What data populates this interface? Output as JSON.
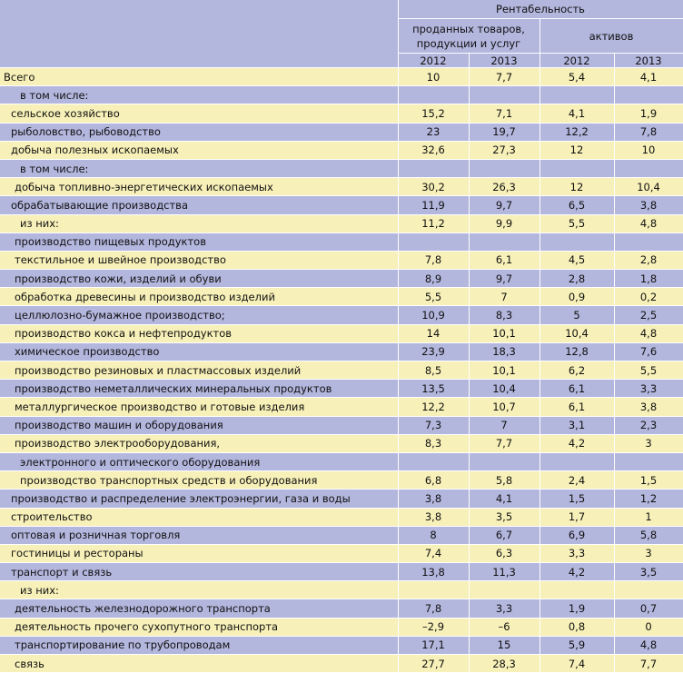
{
  "header": {
    "group": "Рентабельность",
    "sub1": "проданных товаров, продукции и услуг",
    "sub2": "активов",
    "years": [
      "2012",
      "2013",
      "2012",
      "2013"
    ]
  },
  "rows": [
    {
      "label": "Всего",
      "indent": 0,
      "values": [
        "10",
        "7,7",
        "5,4",
        "4,1"
      ]
    },
    {
      "label": "в том числе:",
      "indent": 3,
      "values": [
        "",
        "",
        "",
        ""
      ]
    },
    {
      "label": "сельское хозяйство",
      "indent": 1,
      "values": [
        "15,2",
        "7,1",
        "4,1",
        "1,9"
      ]
    },
    {
      "label": "рыболовство, рыбоводство",
      "indent": 1,
      "values": [
        "23",
        "19,7",
        "12,2",
        "7,8"
      ]
    },
    {
      "label": "добыча полезных ископаемых",
      "indent": 1,
      "values": [
        "32,6",
        "27,3",
        "12",
        "10"
      ]
    },
    {
      "label": "в том числе:",
      "indent": 3,
      "values": [
        "",
        "",
        "",
        ""
      ]
    },
    {
      "label": "добыча топливно-энергетических ископаемых",
      "indent": 2,
      "values": [
        "30,2",
        "26,3",
        "12",
        "10,4"
      ]
    },
    {
      "label": "обрабатывающие производства",
      "indent": 1,
      "values": [
        "11,9",
        "9,7",
        "6,5",
        "3,8"
      ]
    },
    {
      "label": "из них:",
      "indent": 3,
      "values": [
        "11,2",
        "9,9",
        "5,5",
        "4,8"
      ]
    },
    {
      "label": "производство пищевых продуктов",
      "indent": 2,
      "values": [
        "",
        "",
        "",
        ""
      ]
    },
    {
      "label": "текстильное и швейное производство",
      "indent": 2,
      "values": [
        "7,8",
        "6,1",
        "4,5",
        "2,8"
      ]
    },
    {
      "label": "производство кожи, изделий и обуви",
      "indent": 2,
      "values": [
        "8,9",
        "9,7",
        "2,8",
        "1,8"
      ]
    },
    {
      "label": "обработка древесины и производство изделий",
      "indent": 2,
      "values": [
        "5,5",
        "7",
        "0,9",
        "0,2"
      ]
    },
    {
      "label": "целлюлозно-бумажное производство;",
      "indent": 2,
      "values": [
        "10,9",
        "8,3",
        "5",
        "2,5"
      ]
    },
    {
      "label": "производство кокса и нефтепродуктов",
      "indent": 2,
      "values": [
        "14",
        "10,1",
        "10,4",
        "4,8"
      ]
    },
    {
      "label": "химическое производство",
      "indent": 2,
      "values": [
        "23,9",
        "18,3",
        "12,8",
        "7,6"
      ]
    },
    {
      "label": "производство резиновых и пластмассовых изделий",
      "indent": 2,
      "values": [
        "8,5",
        "10,1",
        "6,2",
        "5,5"
      ]
    },
    {
      "label": "производство неметаллических минеральных продуктов",
      "indent": 2,
      "values": [
        "13,5",
        "10,4",
        "6,1",
        "3,3"
      ]
    },
    {
      "label": "металлургическое производство и готовые изделия",
      "indent": 2,
      "values": [
        "12,2",
        "10,7",
        "6,1",
        "3,8"
      ]
    },
    {
      "label": "производство машин и оборудования",
      "indent": 2,
      "values": [
        "7,3",
        "7",
        "3,1",
        "2,3"
      ]
    },
    {
      "label": "производство электрооборудования,",
      "indent": 2,
      "values": [
        "8,3",
        "7,7",
        "4,2",
        "3"
      ]
    },
    {
      "label": "электронного и оптического оборудования",
      "indent": 3,
      "values": [
        "",
        "",
        "",
        ""
      ]
    },
    {
      "label": "производство транспортных средств и оборудования",
      "indent": 3,
      "values": [
        "6,8",
        "5,8",
        "2,4",
        "1,5"
      ]
    },
    {
      "label": "производство и распределение электроэнергии, газа и воды",
      "indent": 1,
      "values": [
        "3,8",
        "4,1",
        "1,5",
        "1,2"
      ]
    },
    {
      "label": "строительство",
      "indent": 1,
      "values": [
        "3,8",
        "3,5",
        "1,7",
        "1"
      ]
    },
    {
      "label": "оптовая и розничная торговля",
      "indent": 1,
      "values": [
        "8",
        "6,7",
        "6,9",
        "5,8"
      ]
    },
    {
      "label": "гостиницы и рестораны",
      "indent": 1,
      "values": [
        "7,4",
        "6,3",
        "3,3",
        "3"
      ]
    },
    {
      "label": "транспорт и связь",
      "indent": 1,
      "values": [
        "13,8",
        "11,3",
        "4,2",
        "3,5"
      ]
    },
    {
      "label": "из них:",
      "indent": 3,
      "values": [
        "",
        "",
        "",
        ""
      ]
    },
    {
      "label": "деятельность железнодорожного транспорта",
      "indent": 2,
      "values": [
        "7,8",
        "3,3",
        "1,9",
        "0,7"
      ]
    },
    {
      "label": "деятельность прочего сухопутного транспорта",
      "indent": 2,
      "values": [
        "–2,9",
        "–6",
        "0,8",
        "0"
      ]
    },
    {
      "label": "транспортирование по трубопроводам",
      "indent": 2,
      "values": [
        "17,1",
        "15",
        "5,9",
        "4,8"
      ]
    },
    {
      "label": "связь",
      "indent": 2,
      "values": [
        "27,7",
        "28,3",
        "7,4",
        "7,7"
      ]
    }
  ]
}
